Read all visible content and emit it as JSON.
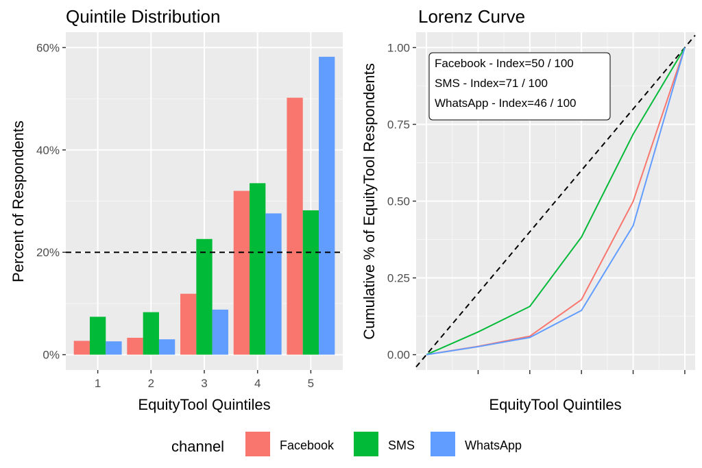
{
  "chart_data": [
    {
      "type": "bar",
      "title": "Quintile Distribution",
      "xlabel": "EquityTool Quintiles",
      "ylabel": "Percent of Respondents",
      "categories": [
        "1",
        "2",
        "3",
        "4",
        "5"
      ],
      "ylim": [
        0,
        60
      ],
      "yticks": [
        0,
        20,
        40,
        60
      ],
      "ytick_labels": [
        "0%",
        "20%",
        "40%",
        "60%"
      ],
      "reference_line": 20,
      "series": [
        {
          "name": "Facebook",
          "color": "#F8766D",
          "values": [
            2.7,
            3.3,
            11.9,
            32.0,
            50.2
          ]
        },
        {
          "name": "SMS",
          "color": "#00BA38",
          "values": [
            7.4,
            8.3,
            22.6,
            33.5,
            28.2
          ]
        },
        {
          "name": "WhatsApp",
          "color": "#619CFF",
          "values": [
            2.6,
            3.0,
            8.8,
            27.6,
            58.2
          ]
        }
      ],
      "grid": true
    },
    {
      "type": "line",
      "title": "Lorenz Curve",
      "xlabel": "EquityTool Quintiles",
      "ylabel": "Cumulative % of EquityTool Respondents",
      "x": [
        0,
        1,
        2,
        3,
        4,
        5
      ],
      "xlim": [
        -0.2,
        5.2
      ],
      "ylim": [
        -0.05,
        1.05
      ],
      "yticks": [
        0.0,
        0.25,
        0.5,
        0.75,
        1.0
      ],
      "ytick_labels": [
        "0.00",
        "0.25",
        "0.50",
        "0.75",
        "1.00"
      ],
      "diagonal_reference": true,
      "series": [
        {
          "name": "Facebook",
          "color": "#F8766D",
          "values": [
            0,
            0.027,
            0.06,
            0.179,
            0.499,
            1.0
          ]
        },
        {
          "name": "SMS",
          "color": "#00BA38",
          "values": [
            0,
            0.074,
            0.157,
            0.383,
            0.718,
            1.0
          ]
        },
        {
          "name": "WhatsApp",
          "color": "#619CFF",
          "values": [
            0,
            0.026,
            0.056,
            0.144,
            0.42,
            1.0
          ]
        }
      ],
      "annotation": [
        "Facebook - Index=50 / 100",
        "SMS - Index=71 / 100",
        "WhatsApp - Index=46 / 100"
      ],
      "annotation_placement": "top-left",
      "grid": true
    }
  ],
  "legend": {
    "title": "channel",
    "items": [
      {
        "label": "Facebook",
        "color": "#F8766D"
      },
      {
        "label": "SMS",
        "color": "#00BA38"
      },
      {
        "label": "WhatsApp",
        "color": "#619CFF"
      }
    ],
    "placement": "bottom"
  }
}
